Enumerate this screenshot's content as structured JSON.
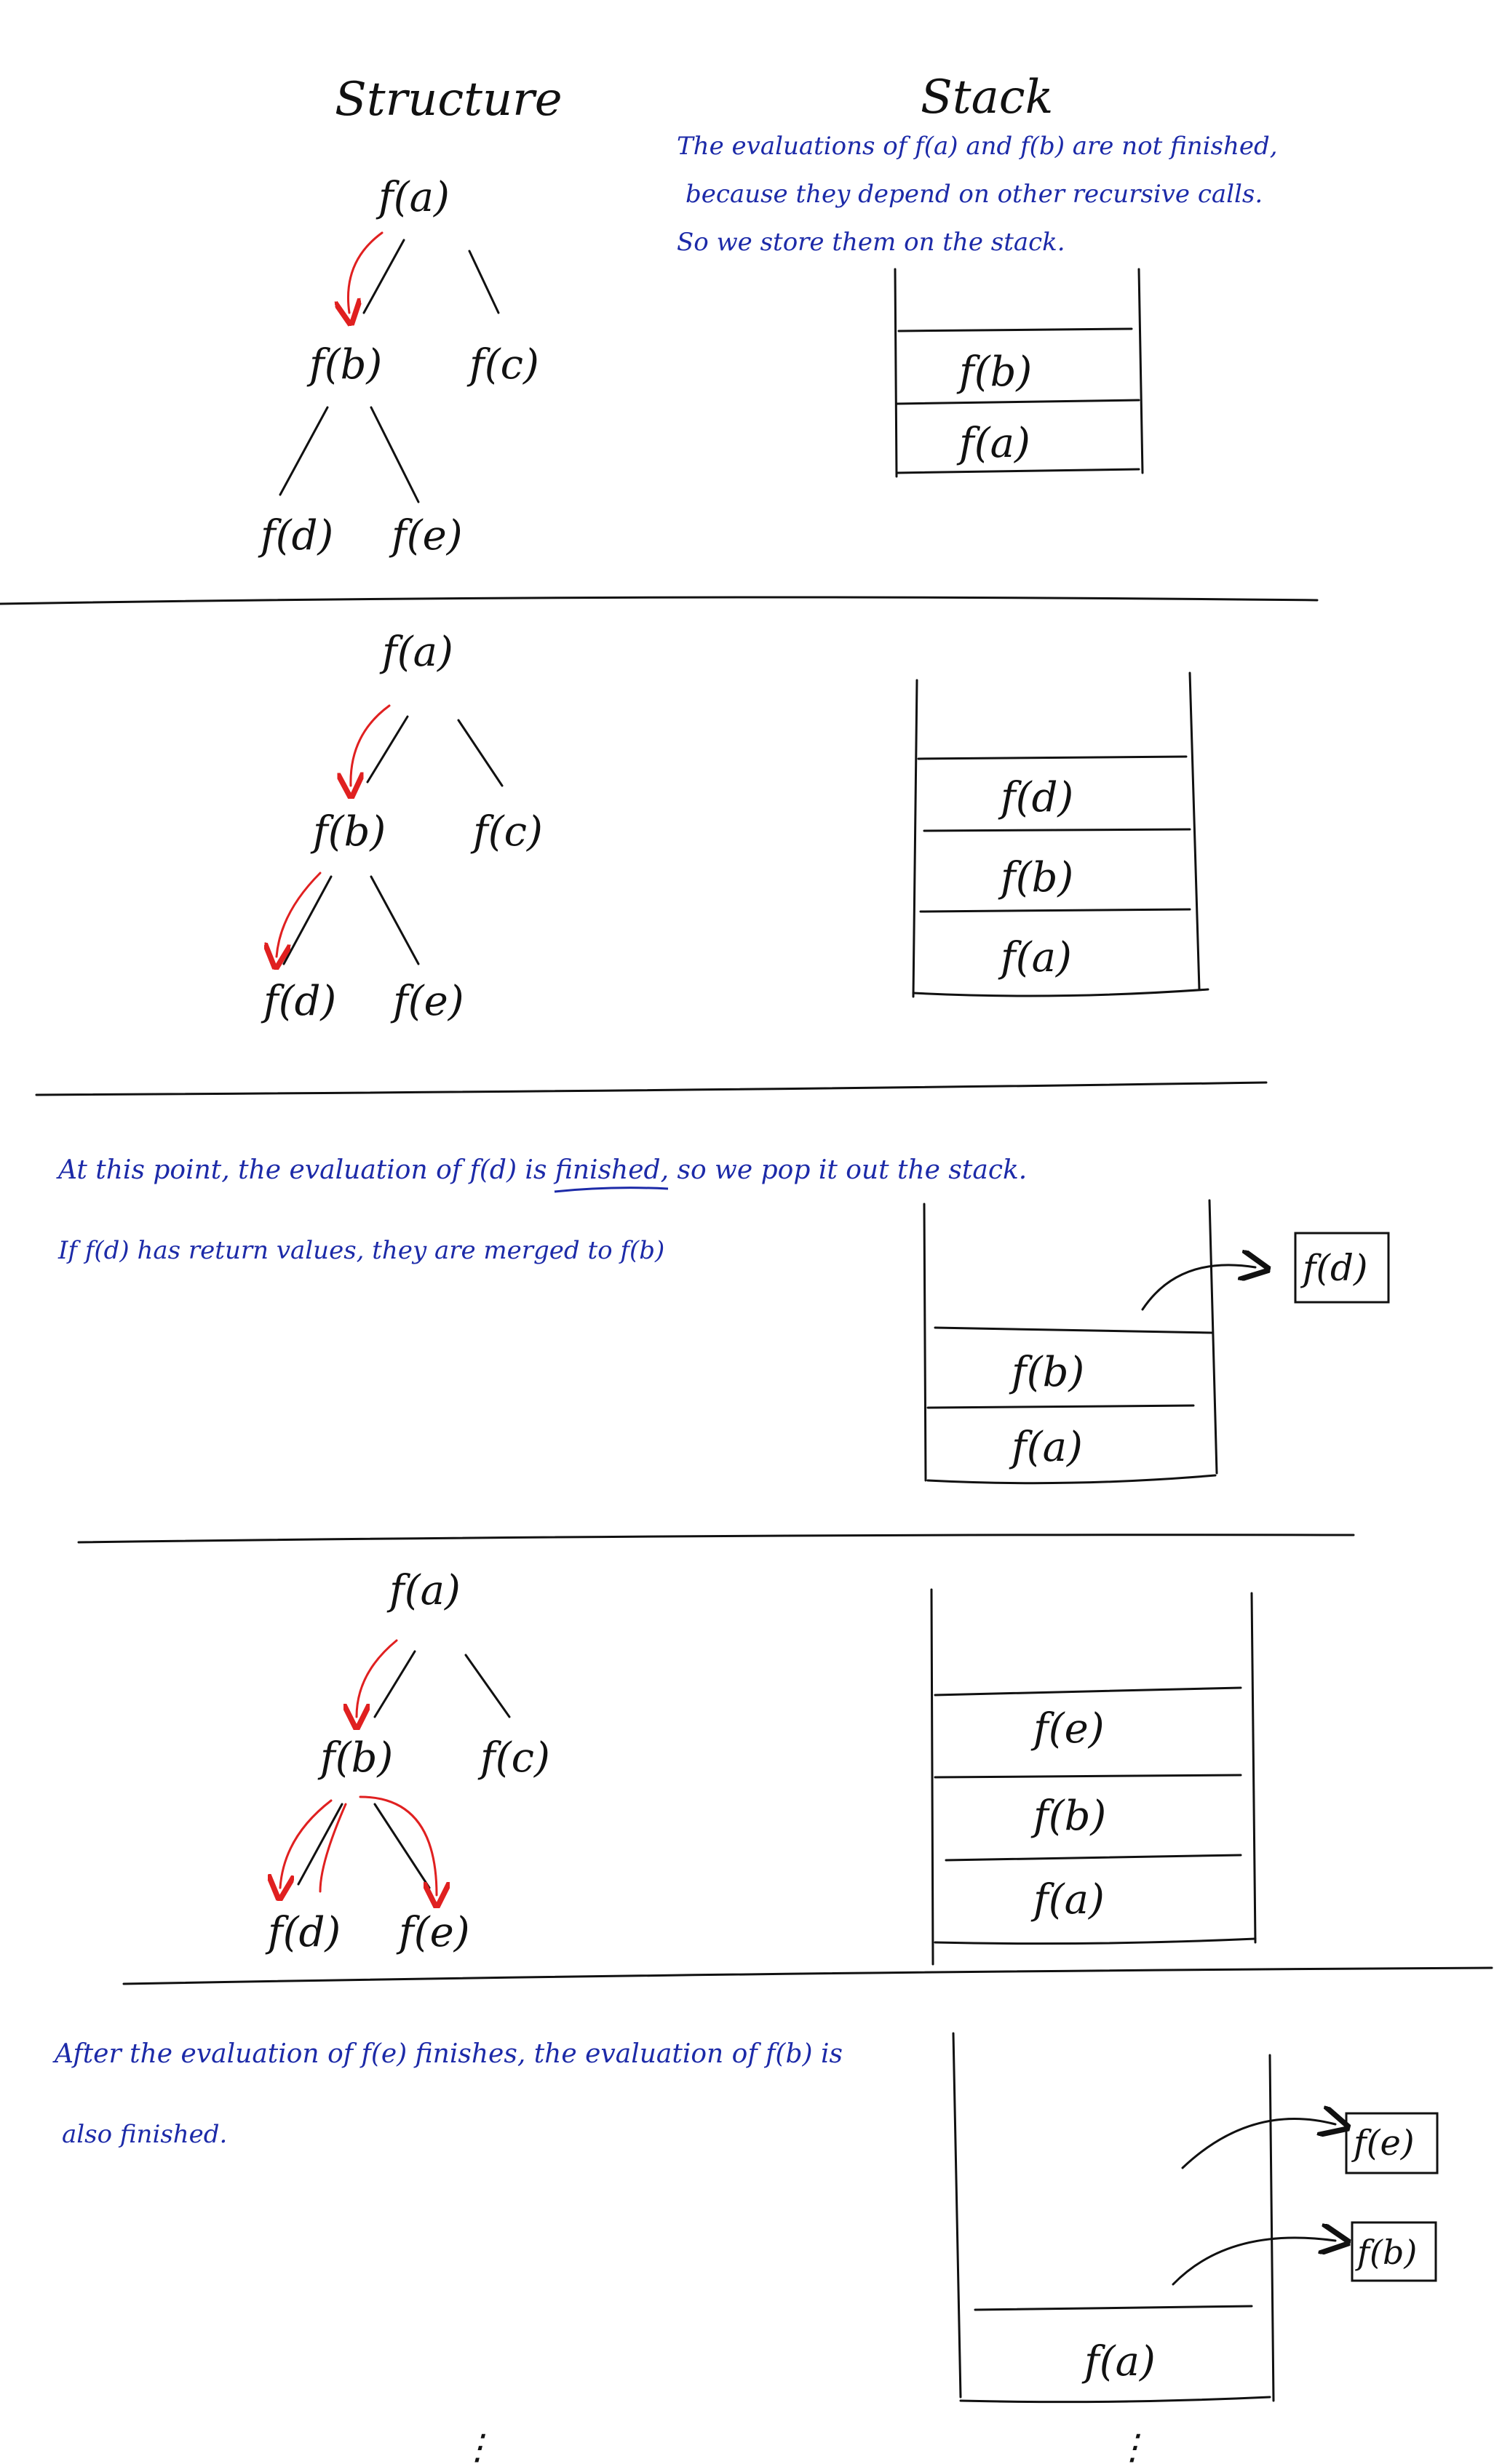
{
  "headers": {
    "structure": "Structure",
    "stack": "Stack"
  },
  "notes": {
    "intro": [
      "The evaluations of f(a) and f(b) are not finished,",
      "because they depend on other recursive calls.",
      "So we store them on the stack."
    ],
    "pop_d": [
      "At this point, the evaluation of f(d) is finished, so we pop it out the stack.",
      "If f(d) has return values, they are merged to f(b)"
    ],
    "finish_e": [
      "After the evaluation of f(e) finishes, the evaluation of f(b) is",
      "also finished."
    ],
    "finished_word": "finished,"
  },
  "tree_labels": {
    "a": "f(a)",
    "b": "f(b)",
    "c": "f(c)",
    "d": "f(d)",
    "e": "f(e)"
  },
  "panels": [
    {
      "stack": [
        "f(b)",
        "f(a)"
      ],
      "popped": []
    },
    {
      "stack": [
        "f(d)",
        "f(b)",
        "f(a)"
      ],
      "popped": []
    },
    {
      "stack": [
        "f(b)",
        "f(a)"
      ],
      "popped": [
        "f(d)"
      ]
    },
    {
      "stack": [
        "f(e)",
        "f(b)",
        "f(a)"
      ],
      "popped": []
    },
    {
      "stack": [
        "f(a)"
      ],
      "popped": [
        "f(e)",
        "f(b)"
      ]
    }
  ],
  "continuation": "⋮",
  "colors": {
    "ink": "#111111",
    "note": "#1c2aa8",
    "arrow": "#e02020"
  }
}
